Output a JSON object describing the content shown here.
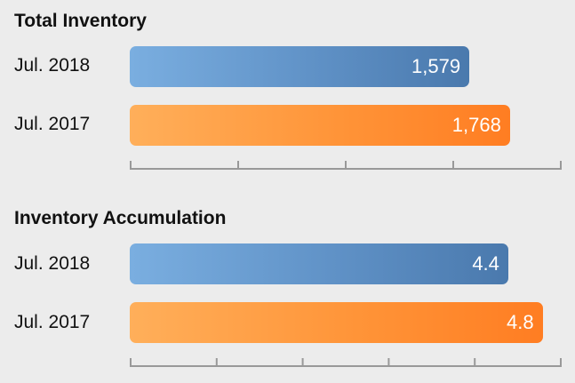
{
  "chart_data": [
    {
      "type": "bar",
      "orientation": "horizontal",
      "title": "Total Inventory",
      "categories": [
        "Jul. 2018",
        "Jul. 2017"
      ],
      "values": [
        1579,
        1768
      ],
      "value_labels": [
        "1,579",
        "1,768"
      ],
      "xlim": [
        0,
        2000
      ],
      "xticks": [
        0,
        500,
        1000,
        1500,
        2000
      ],
      "colors": [
        "#5f91c6",
        "#ff9438"
      ],
      "grid": false,
      "legend": "none"
    },
    {
      "type": "bar",
      "orientation": "horizontal",
      "title": "Inventory Accumulation",
      "categories": [
        "Jul. 2018",
        "Jul. 2017"
      ],
      "values": [
        4.4,
        4.8
      ],
      "value_labels": [
        "4.4",
        "4.8"
      ],
      "xlim": [
        0,
        5
      ],
      "xticks": [
        0,
        1,
        2,
        3,
        4,
        5
      ],
      "colors": [
        "#5f91c6",
        "#ff9438"
      ],
      "grid": false,
      "legend": "none"
    }
  ]
}
